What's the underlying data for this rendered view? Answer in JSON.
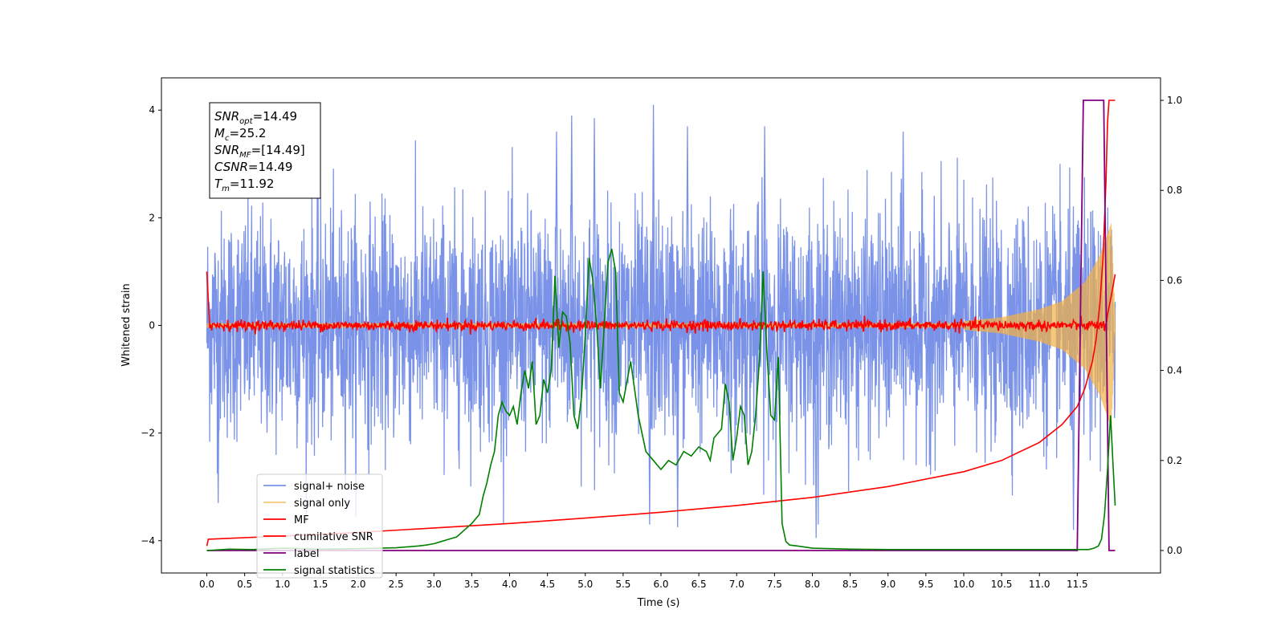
{
  "chart_data": {
    "type": "line",
    "title": "",
    "xlabel": "Time (s)",
    "ylabel": "Whitened strain",
    "xlim": [
      -0.6,
      12.6
    ],
    "ylim": [
      -4.6,
      4.6
    ],
    "y2lim": [
      -0.05,
      1.05
    ],
    "grid": false,
    "legend_position": "lower-left",
    "x_ticks": [
      0.0,
      0.5,
      1.0,
      1.5,
      2.0,
      2.5,
      3.0,
      3.5,
      4.0,
      4.5,
      5.0,
      5.5,
      6.0,
      6.5,
      7.0,
      7.5,
      8.0,
      8.5,
      9.0,
      9.5,
      10.0,
      10.5,
      11.0,
      11.5
    ],
    "x_tick_labels": [
      "0.0",
      "0.5",
      "1.0",
      "1.5",
      "2.0",
      "2.5",
      "3.0",
      "3.5",
      "4.0",
      "4.5",
      "5.0",
      "5.5",
      "6.0",
      "6.5",
      "7.0",
      "7.5",
      "8.0",
      "8.5",
      "9.0",
      "9.5",
      "10.0",
      "10.5",
      "11.0",
      "11.5"
    ],
    "y_ticks": [
      4,
      2,
      0,
      -2,
      -4
    ],
    "y_tick_labels": [
      "4",
      "2",
      "0",
      "−2",
      "−4"
    ],
    "y2_ticks": [
      1.0,
      0.8,
      0.6,
      0.4,
      0.2,
      0.0
    ],
    "y2_tick_labels": [
      "1.0",
      "0.8",
      "0.6",
      "0.4",
      "0.2",
      "0.0"
    ],
    "annotation": {
      "line1": {
        "base": "SNR",
        "sub": "opt",
        "rest": "=14.49"
      },
      "line2": {
        "base": "M",
        "sub": "c",
        "rest": "=25.2"
      },
      "line3": {
        "base": "SNR",
        "sub": "MF",
        "rest": "=[14.49]"
      },
      "line4": {
        "base": "CSNR",
        "sub": "",
        "rest": "=14.49"
      },
      "line5": {
        "base": "T",
        "sub": "m",
        "rest": "=11.92"
      }
    },
    "series": [
      {
        "name": "signal+ noise",
        "axis": "left",
        "color": "#7a93e8",
        "description_noise": {
          "t_start": 0.0,
          "t_end": 12.0,
          "sigma": 1.05,
          "max_abs": 4.1
        },
        "peaks": [
          {
            "x": 4.82,
            "y": 3.9
          },
          {
            "x": 5.12,
            "y": 3.85
          },
          {
            "x": 5.9,
            "y": 4.1
          },
          {
            "x": 6.35,
            "y": 3.7
          },
          {
            "x": 7.37,
            "y": 3.7
          },
          {
            "x": 9.2,
            "y": 3.6
          },
          {
            "x": 4.62,
            "y": 3.6
          },
          {
            "x": 6.22,
            "y": -3.75
          },
          {
            "x": 5.85,
            "y": -3.7
          },
          {
            "x": 8.05,
            "y": -3.95
          },
          {
            "x": 11.45,
            "y": -3.8
          },
          {
            "x": 0.15,
            "y": -3.3
          }
        ]
      },
      {
        "name": "signal only",
        "axis": "left",
        "color": "#f5b042",
        "envelope": [
          [
            10.0,
            0.08
          ],
          [
            10.5,
            0.15
          ],
          [
            11.0,
            0.3
          ],
          [
            11.3,
            0.45
          ],
          [
            11.6,
            0.8
          ],
          [
            11.8,
            1.3
          ],
          [
            11.95,
            1.9
          ],
          [
            12.0,
            0.2
          ]
        ]
      },
      {
        "name": "MF",
        "axis": "left",
        "color": "#ff0000",
        "start_value": 1.0,
        "noise_sigma": 0.05,
        "end_spike": [
          [
            11.9,
            0.2
          ],
          [
            11.95,
            0.55
          ],
          [
            12.0,
            0.95
          ]
        ]
      },
      {
        "name": "cumilative SNR",
        "axis": "right",
        "color": "#ff0000",
        "x": [
          0.0,
          0.02,
          1.0,
          2.0,
          3.0,
          4.0,
          5.0,
          6.0,
          7.0,
          8.0,
          9.0,
          10.0,
          10.5,
          11.0,
          11.3,
          11.5,
          11.6,
          11.7,
          11.75,
          11.8,
          11.84,
          11.88,
          11.9,
          11.92,
          12.0
        ],
        "y": [
          0.01,
          0.025,
          0.032,
          0.04,
          0.05,
          0.06,
          0.072,
          0.085,
          0.1,
          0.118,
          0.142,
          0.175,
          0.2,
          0.24,
          0.28,
          0.32,
          0.36,
          0.42,
          0.47,
          0.55,
          0.65,
          0.82,
          0.95,
          1.0,
          1.0
        ]
      },
      {
        "name": "label",
        "axis": "right",
        "color": "#800080",
        "x": [
          0.0,
          11.5,
          11.58,
          11.85,
          11.92,
          12.0
        ],
        "y": [
          0.0,
          0.0,
          1.0,
          1.0,
          0.0,
          0.0
        ]
      },
      {
        "name": "signal statistics",
        "axis": "right",
        "color": "#008000",
        "x": [
          0.0,
          0.3,
          0.6,
          1.0,
          1.5,
          2.0,
          2.5,
          2.8,
          2.9,
          3.0,
          3.1,
          3.2,
          3.3,
          3.4,
          3.5,
          3.6,
          3.65,
          3.7,
          3.75,
          3.8,
          3.85,
          3.9,
          3.95,
          4.0,
          4.05,
          4.1,
          4.15,
          4.2,
          4.25,
          4.3,
          4.35,
          4.4,
          4.45,
          4.5,
          4.55,
          4.6,
          4.65,
          4.7,
          4.75,
          4.8,
          4.85,
          4.9,
          4.95,
          5.0,
          5.05,
          5.1,
          5.15,
          5.2,
          5.25,
          5.3,
          5.35,
          5.4,
          5.45,
          5.5,
          5.6,
          5.7,
          5.8,
          5.9,
          6.0,
          6.1,
          6.2,
          6.3,
          6.4,
          6.5,
          6.6,
          6.65,
          6.7,
          6.75,
          6.8,
          6.85,
          6.9,
          6.95,
          7.0,
          7.05,
          7.1,
          7.15,
          7.2,
          7.25,
          7.3,
          7.35,
          7.4,
          7.45,
          7.5,
          7.55,
          7.6,
          7.65,
          7.7,
          7.8,
          8.0,
          8.5,
          9.0,
          10.0,
          11.0,
          11.5,
          11.65,
          11.72,
          11.78,
          11.82,
          11.86,
          11.9,
          11.94,
          11.97,
          12.0
        ],
        "y": [
          0.0,
          0.003,
          0.002,
          0.005,
          0.003,
          0.004,
          0.006,
          0.01,
          0.012,
          0.015,
          0.02,
          0.025,
          0.03,
          0.045,
          0.06,
          0.08,
          0.12,
          0.15,
          0.19,
          0.22,
          0.3,
          0.33,
          0.31,
          0.3,
          0.32,
          0.28,
          0.35,
          0.4,
          0.36,
          0.42,
          0.28,
          0.3,
          0.38,
          0.35,
          0.4,
          0.61,
          0.45,
          0.53,
          0.52,
          0.46,
          0.3,
          0.27,
          0.34,
          0.48,
          0.65,
          0.6,
          0.5,
          0.36,
          0.5,
          0.64,
          0.67,
          0.62,
          0.35,
          0.33,
          0.42,
          0.3,
          0.22,
          0.2,
          0.18,
          0.2,
          0.19,
          0.22,
          0.21,
          0.23,
          0.22,
          0.2,
          0.25,
          0.26,
          0.27,
          0.37,
          0.33,
          0.2,
          0.25,
          0.32,
          0.3,
          0.19,
          0.22,
          0.3,
          0.42,
          0.62,
          0.44,
          0.3,
          0.29,
          0.43,
          0.06,
          0.02,
          0.012,
          0.01,
          0.005,
          0.003,
          0.002,
          0.002,
          0.002,
          0.002,
          0.002,
          0.005,
          0.01,
          0.025,
          0.08,
          0.18,
          0.3,
          0.2,
          0.1
        ]
      }
    ]
  }
}
